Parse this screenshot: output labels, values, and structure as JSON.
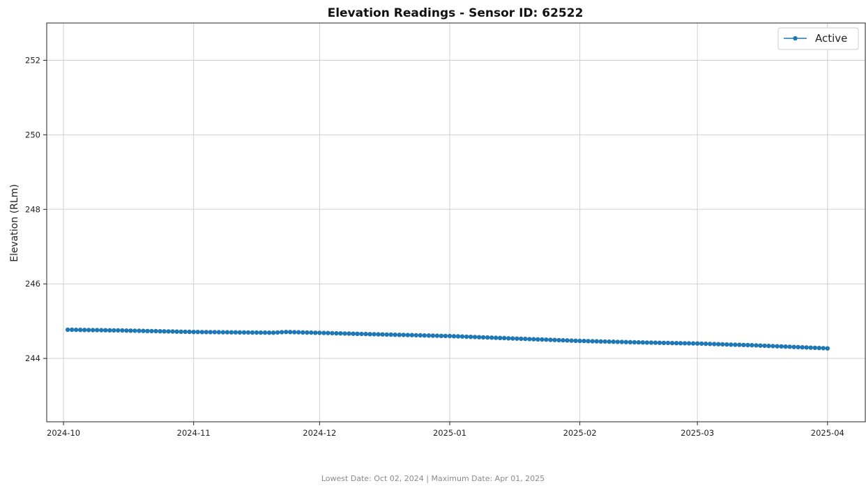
{
  "chart_data": {
    "type": "line",
    "title": "Elevation Readings - Sensor ID: 62522",
    "xlabel": "",
    "ylabel": "Elevation (RLm)",
    "x_type": "date",
    "xlim": [
      "2024-09-27",
      "2025-04-10"
    ],
    "ylim": [
      242.3,
      253.0
    ],
    "x_ticks": [
      "2024-10-01",
      "2024-11-01",
      "2024-12-01",
      "2025-01-01",
      "2025-02-01",
      "2025-03-01",
      "2025-04-01"
    ],
    "x_tick_labels": [
      "2024-10",
      "2024-11",
      "2024-12",
      "2025-01",
      "2025-02",
      "2025-03",
      "2025-04"
    ],
    "y_ticks": [
      244,
      246,
      248,
      250,
      252
    ],
    "grid": true,
    "legend_position": "top-right",
    "series": [
      {
        "name": "Active",
        "color": "#1f77b4",
        "marker": "circle",
        "x_start": "2024-10-02",
        "x_end": "2025-04-01",
        "interval": "daily",
        "anchor_points": [
          {
            "x": "2024-10-02",
            "y": 244.77
          },
          {
            "x": "2024-10-15",
            "y": 244.75
          },
          {
            "x": "2024-11-01",
            "y": 244.71
          },
          {
            "x": "2024-11-20",
            "y": 244.69
          },
          {
            "x": "2024-11-23",
            "y": 244.71
          },
          {
            "x": "2024-12-10",
            "y": 244.66
          },
          {
            "x": "2025-01-01",
            "y": 244.6
          },
          {
            "x": "2025-01-15",
            "y": 244.54
          },
          {
            "x": "2025-02-01",
            "y": 244.47
          },
          {
            "x": "2025-02-15",
            "y": 244.43
          },
          {
            "x": "2025-03-01",
            "y": 244.4
          },
          {
            "x": "2025-03-15",
            "y": 244.35
          },
          {
            "x": "2025-04-01",
            "y": 244.27
          }
        ]
      }
    ]
  },
  "footer": {
    "text": "Lowest Date: Oct 02, 2024 | Maximum Date: Apr 01, 2025"
  }
}
